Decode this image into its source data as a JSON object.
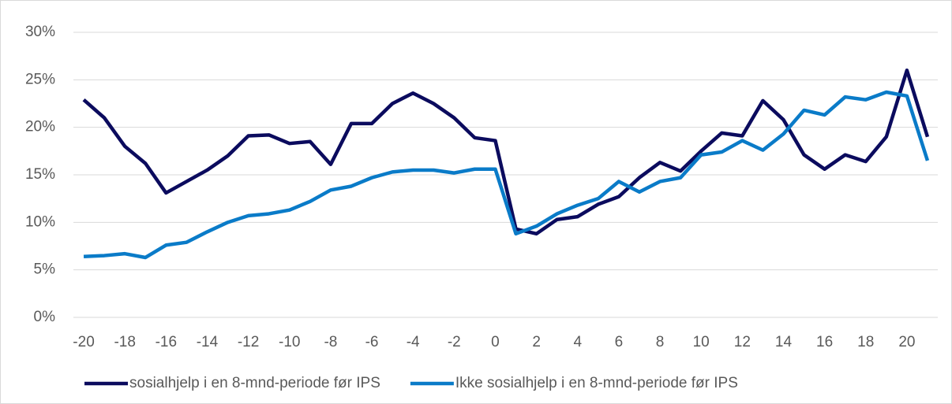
{
  "chart_data": {
    "type": "line",
    "categories": [
      -20,
      null,
      -18,
      null,
      -16,
      null,
      -14,
      null,
      -12,
      null,
      -10,
      null,
      -8,
      null,
      -6,
      null,
      -4,
      null,
      -2,
      null,
      0,
      null,
      2,
      null,
      4,
      null,
      6,
      null,
      8,
      null,
      10,
      null,
      12,
      null,
      14,
      null,
      16,
      null,
      18,
      null,
      20,
      null
    ],
    "series": [
      {
        "name": "sosialhjelp i en 8-mnd-periode før IPS",
        "color": "#0b0b5e",
        "values": [
          22.9,
          21.0,
          18.0,
          16.2,
          13.1,
          14.3,
          15.5,
          17.0,
          19.1,
          19.2,
          18.3,
          18.5,
          16.1,
          20.4,
          20.4,
          22.5,
          23.6,
          22.5,
          21.0,
          18.9,
          18.6,
          9.3,
          8.8,
          10.3,
          10.6,
          11.9,
          12.7,
          14.7,
          16.3,
          15.4,
          17.5,
          19.4,
          19.1,
          22.8,
          20.8,
          17.1,
          15.6,
          17.1,
          16.4,
          19.0,
          26.0,
          19.0
        ]
      },
      {
        "name": "Ikke sosialhjelp i en 8-mnd-periode før IPS",
        "color": "#0a7bc8",
        "values": [
          6.4,
          6.5,
          6.7,
          6.3,
          7.6,
          7.9,
          9.0,
          10.0,
          10.7,
          10.9,
          11.3,
          12.2,
          13.4,
          13.8,
          14.7,
          15.3,
          15.5,
          15.5,
          15.2,
          15.6,
          15.6,
          8.8,
          9.6,
          10.9,
          11.8,
          12.5,
          14.3,
          13.2,
          14.3,
          14.7,
          17.1,
          17.4,
          18.6,
          17.6,
          19.3,
          21.8,
          21.3,
          23.2,
          22.9,
          23.7,
          23.3,
          16.5
        ]
      }
    ],
    "ylim": [
      0,
      30
    ],
    "yticks": [
      {
        "value": 0,
        "label": "0%"
      },
      {
        "value": 5,
        "label": "5%"
      },
      {
        "value": 10,
        "label": "10%"
      },
      {
        "value": 15,
        "label": "15%"
      },
      {
        "value": 20,
        "label": "20%"
      },
      {
        "value": 25,
        "label": "25%"
      },
      {
        "value": 30,
        "label": "30%"
      }
    ],
    "grid": true,
    "legend": "bottom"
  }
}
